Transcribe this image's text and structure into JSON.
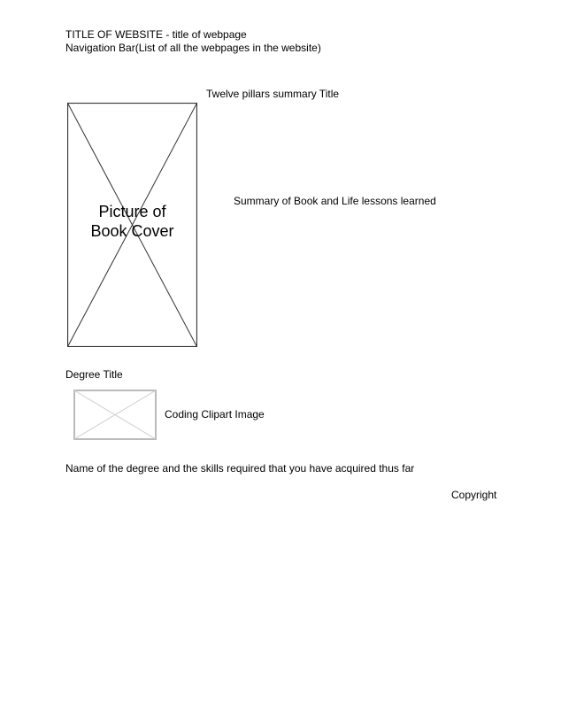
{
  "header": {
    "site_title": "TITLE OF WEBSITE - title of webpage",
    "nav_bar": "Navigation Bar(List of all the webpages in the website)"
  },
  "pillars_section": {
    "title": "Twelve pillars summary Title",
    "book_cover_label": "Picture of Book Cover",
    "summary": "Summary of Book and Life lessons learned"
  },
  "degree_section": {
    "title": "Degree Title",
    "clipart_caption": "Coding Clipart Image",
    "description": "Name of the degree and the skills required that you have acquired thus far"
  },
  "footer": {
    "copyright": "Copyright"
  },
  "colors": {
    "book_cover_stroke": "#333333",
    "clipart_stroke": "#bbbbbb"
  }
}
